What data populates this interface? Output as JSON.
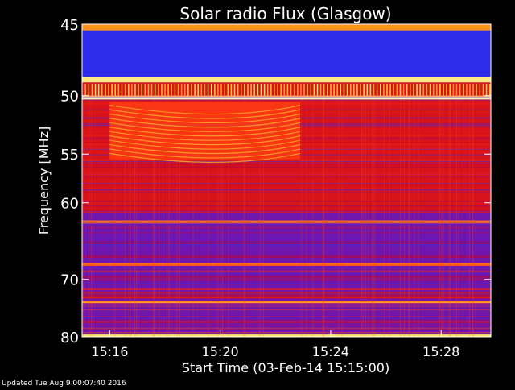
{
  "chart_data": {
    "type": "heatmap",
    "title": "Solar radio Flux (Glasgow)",
    "xlabel": "Start Time (03-Feb-14 15:15:00)",
    "ylabel": "Frequency [MHz]",
    "x_range_minutes": [
      15.0,
      29.8
    ],
    "y_range_mhz": [
      45,
      80
    ],
    "x_ticks": [
      {
        "label": "15:16",
        "minute": 16
      },
      {
        "label": "15:20",
        "minute": 20
      },
      {
        "label": "15:24",
        "minute": 24
      },
      {
        "label": "15:28",
        "minute": 28
      }
    ],
    "y_ticks": [
      45,
      50,
      55,
      60,
      70,
      80
    ],
    "colormap": [
      "#000000",
      "#2020d8",
      "#3030f0",
      "#8010a0",
      "#c00020",
      "#ff3010",
      "#ff9020",
      "#ffe040",
      "#ffffff"
    ],
    "features": [
      {
        "kind": "band",
        "mhz_from": 45.0,
        "mhz_to": 45.4,
        "level": 0.75
      },
      {
        "kind": "band",
        "mhz_from": 45.4,
        "mhz_to": 48.6,
        "level": 0.22
      },
      {
        "kind": "band",
        "mhz_from": 48.6,
        "mhz_to": 49.0,
        "level": 0.92
      },
      {
        "kind": "band",
        "mhz_from": 49.0,
        "mhz_to": 50.2,
        "level": 0.55
      },
      {
        "kind": "band",
        "mhz_from": 50.0,
        "mhz_to": 50.3,
        "level": 0.95
      },
      {
        "kind": "band",
        "mhz_from": 50.3,
        "mhz_to": 61.0,
        "level": 0.55
      },
      {
        "kind": "band",
        "mhz_from": 61.0,
        "mhz_to": 80.0,
        "level": 0.35
      },
      {
        "kind": "band",
        "mhz_from": 62.0,
        "mhz_to": 62.4,
        "level": 0.7
      },
      {
        "kind": "band",
        "mhz_from": 67.6,
        "mhz_to": 68.0,
        "level": 0.7
      },
      {
        "kind": "band",
        "mhz_from": 72.0,
        "mhz_to": 73.0,
        "level": 0.55
      },
      {
        "kind": "band",
        "mhz_from": 73.4,
        "mhz_to": 73.8,
        "level": 0.78
      },
      {
        "kind": "band",
        "mhz_from": 79.4,
        "mhz_to": 80.0,
        "level": 0.9
      },
      {
        "kind": "burst",
        "minute_from": 16.0,
        "minute_to": 22.9,
        "mhz_from": 50.5,
        "mhz_to": 55.5,
        "level": 0.72
      }
    ]
  },
  "footer": {
    "updated": "Updated Tue Aug  9 00:07:40 2016"
  }
}
